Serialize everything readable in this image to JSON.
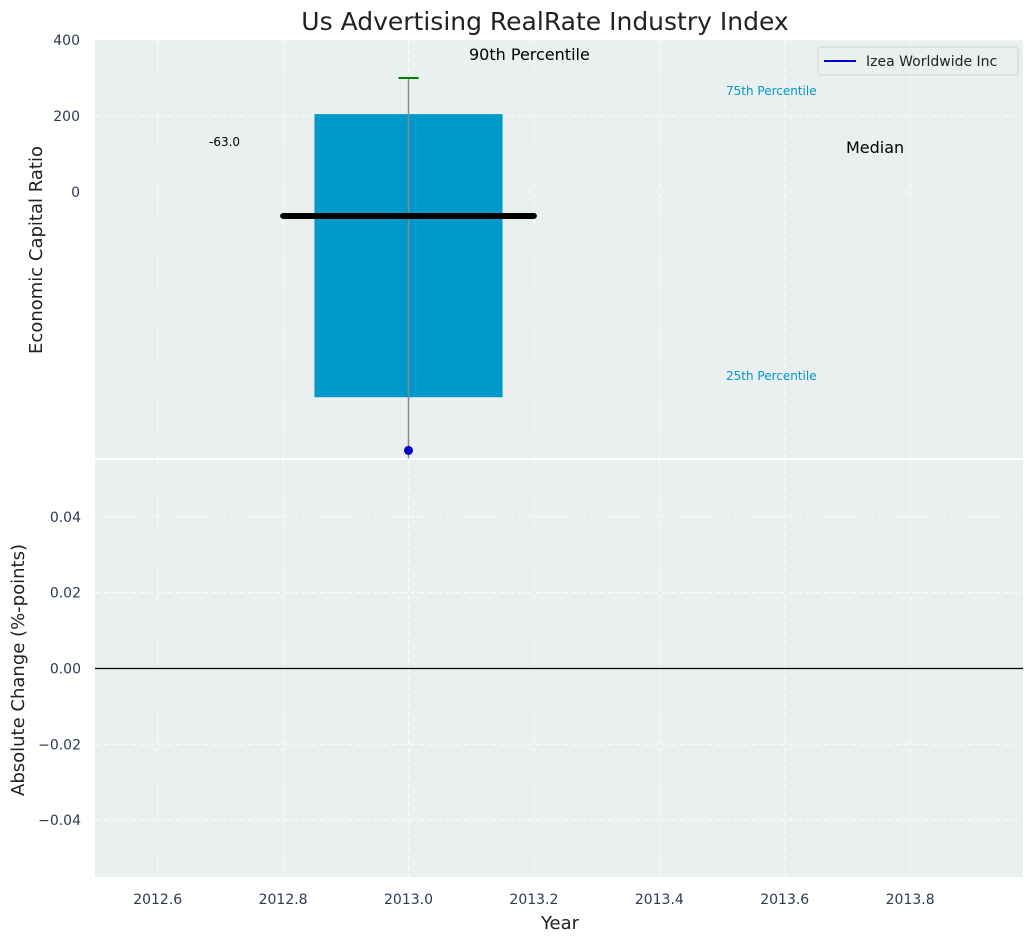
{
  "chart_data": [
    {
      "type": "box",
      "panel": "top",
      "title": "Us Advertising RealRate Industry Index",
      "ylabel": "Economic Capital Ratio",
      "xlim": [
        2012.5,
        2013.98
      ],
      "ylim": [
        -700,
        400
      ],
      "y_ticks": [
        0,
        200,
        400
      ],
      "grid": true,
      "box": {
        "x": 2013.0,
        "width": 0.3,
        "q1": -540,
        "q3": 205,
        "median": -63.0,
        "p90": 300,
        "p10": -680
      },
      "whisker_low_x": 2013.0,
      "median_line_x": [
        2012.8,
        2013.2
      ],
      "series": [
        {
          "name": "Izea Worldwide Inc",
          "x": [
            2013.0
          ],
          "y": [
            -680
          ]
        }
      ],
      "annotations": {
        "p90_label": "90th Percentile",
        "p75_label": "75th Percentile",
        "p25_label": "25th Percentile",
        "median_label": "Median",
        "median_value_label": "-63.0"
      },
      "colors": {
        "box": "#0099cc",
        "median_line": "#000000",
        "p90_marker": "#008000",
        "company_point": "#0000cc",
        "whisker": "#888888",
        "percentile_text": "#0099cc",
        "plot_bg": "#eaeff0"
      },
      "legend": "top-right"
    },
    {
      "type": "line",
      "panel": "bottom",
      "xlabel": "Year",
      "ylabel": "Absolute Change (%-points)",
      "xlim": [
        2012.5,
        2013.98
      ],
      "ylim": [
        -0.055,
        0.055
      ],
      "x_ticks": [
        "2012.6",
        "2012.8",
        "2013.0",
        "2013.2",
        "2013.4",
        "2013.6",
        "2013.8"
      ],
      "y_ticks": [
        "0.04",
        "0.02",
        "0.00",
        "−0.02",
        "−0.04"
      ],
      "reference_line": 0,
      "grid": true
    }
  ]
}
